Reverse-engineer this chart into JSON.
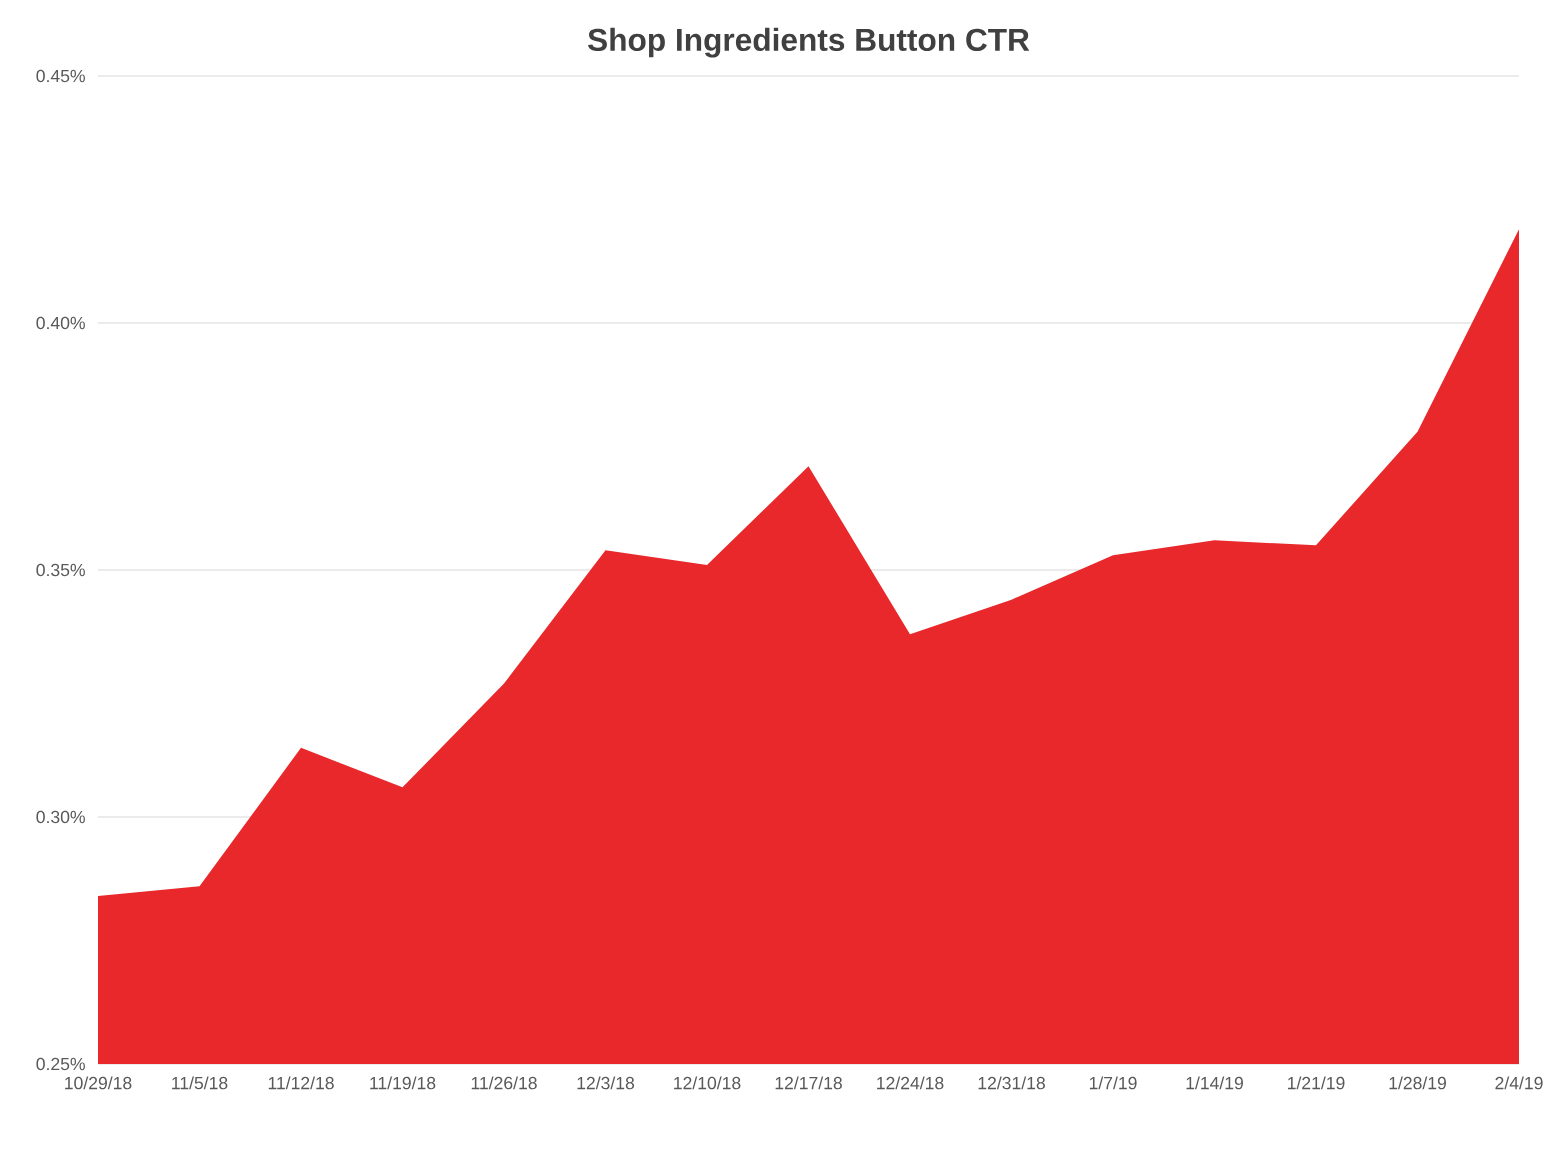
{
  "chart_data": {
    "type": "area",
    "title": "Shop Ingredients Button CTR",
    "categories": [
      "10/29/18",
      "11/5/18",
      "11/12/18",
      "11/19/18",
      "11/26/18",
      "12/3/18",
      "12/10/18",
      "12/17/18",
      "12/24/18",
      "12/31/18",
      "1/7/19",
      "1/14/19",
      "1/21/19",
      "1/28/19",
      "2/4/19"
    ],
    "values": [
      0.284,
      0.286,
      0.314,
      0.306,
      0.327,
      0.354,
      0.351,
      0.371,
      0.337,
      0.344,
      0.353,
      0.356,
      0.355,
      0.378,
      0.419
    ],
    "color": "#e8282a",
    "ylim": [
      0.25,
      0.45
    ],
    "yticks": [
      {
        "value": 0.25,
        "label": "0.25%"
      },
      {
        "value": 0.3,
        "label": "0.30%"
      },
      {
        "value": 0.35,
        "label": "0.35%"
      },
      {
        "value": 0.4,
        "label": "0.40%"
      },
      {
        "value": 0.45,
        "label": "0.45%"
      }
    ],
    "grid": "y"
  }
}
